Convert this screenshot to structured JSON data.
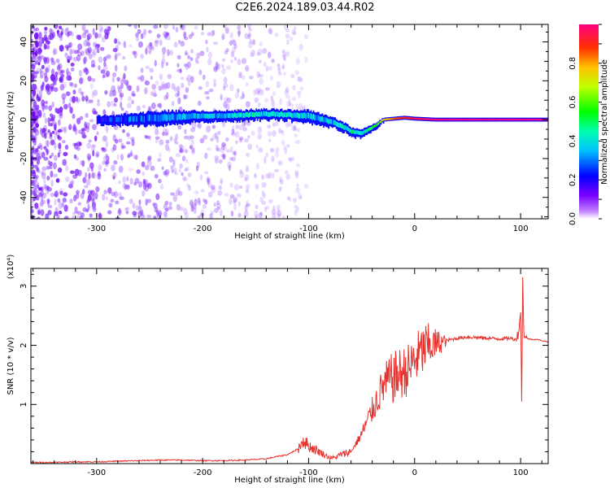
{
  "title": "C2E6.2024.189.03.44.R02",
  "colors": {
    "snr_line": "#e8302c",
    "spectrogram_band": "#2a00ff",
    "speckle": "#8a3cff"
  },
  "chart_data": [
    {
      "type": "heatmap",
      "xlabel": "Height of straight line (km)",
      "ylabel": "Frequency (Hz)",
      "xlim": [
        -362,
        126
      ],
      "ylim": [
        -51,
        49
      ],
      "xticks": [
        -300,
        -200,
        -100,
        0,
        100
      ],
      "yticks": [
        -40,
        -20,
        0,
        20,
        40
      ],
      "colorbar": {
        "label": "Normalized spectral amplitude",
        "range": [
          0.0,
          1.0
        ],
        "ticks": [
          0.0,
          0.2,
          0.4,
          0.6,
          0.8
        ],
        "colormap": "rainbow"
      },
      "ridge": {
        "x": [
          -300,
          -280,
          -260,
          -240,
          -220,
          -200,
          -180,
          -160,
          -140,
          -120,
          -100,
          -80,
          -70,
          -60,
          -50,
          -40,
          -35,
          -30,
          -20,
          -10,
          0,
          20,
          40,
          60,
          80,
          100,
          126
        ],
        "y": [
          0,
          0,
          0.5,
          1,
          1.5,
          2,
          2,
          2.5,
          3,
          2.5,
          2,
          -1,
          -3,
          -6,
          -7,
          -4,
          -2,
          0,
          0.5,
          1,
          0.5,
          0,
          0,
          0,
          0,
          0,
          0
        ],
        "width": [
          4,
          5,
          6,
          7,
          6,
          5,
          5,
          5,
          5,
          5,
          6,
          5,
          5,
          4,
          4,
          3,
          2.5,
          2,
          2,
          2,
          2,
          2,
          2,
          2,
          2,
          2,
          2
        ],
        "amplitude": [
          0.2,
          0.25,
          0.3,
          0.3,
          0.35,
          0.35,
          0.35,
          0.4,
          0.4,
          0.4,
          0.35,
          0.35,
          0.4,
          0.45,
          0.4,
          0.5,
          0.6,
          0.75,
          0.85,
          0.9,
          0.95,
          1,
          1,
          1,
          1,
          1,
          1
        ]
      }
    },
    {
      "type": "line",
      "xlabel": "Height of straight line (km)",
      "ylabel": "SNR (10 * v/v)",
      "y_multiplier": "(x10⁴)",
      "xlim": [
        -362,
        126
      ],
      "ylim": [
        0,
        3.3
      ],
      "xticks": [
        -300,
        -200,
        -100,
        0,
        100
      ],
      "yticks": [
        1,
        2,
        3
      ],
      "series": [
        {
          "x": [
            -362,
            -340,
            -320,
            -300,
            -280,
            -260,
            -240,
            -220,
            -200,
            -180,
            -160,
            -140,
            -130,
            -120,
            -110,
            -105,
            -100,
            -95,
            -90,
            -85,
            -80,
            -75,
            -70,
            -60,
            -55,
            -50,
            -45,
            -40,
            -35,
            -30,
            -25,
            -20,
            -15,
            -10,
            -5,
            0,
            5,
            10,
            15,
            20,
            25,
            30,
            35,
            40,
            50,
            60,
            70,
            80,
            90,
            95,
            98,
            100,
            101,
            102,
            103,
            105,
            110,
            115,
            120,
            126
          ],
          "y": [
            0.02,
            0.02,
            0.03,
            0.03,
            0.04,
            0.05,
            0.06,
            0.06,
            0.05,
            0.05,
            0.06,
            0.08,
            0.12,
            0.15,
            0.25,
            0.4,
            0.3,
            0.25,
            0.2,
            0.15,
            0.1,
            0.1,
            0.15,
            0.2,
            0.35,
            0.5,
            0.7,
            0.9,
            1.1,
            1.3,
            1.4,
            1.45,
            1.5,
            1.55,
            1.6,
            1.75,
            1.85,
            1.95,
            2.0,
            2.02,
            2.05,
            2.08,
            2.1,
            2.12,
            2.14,
            2.13,
            2.12,
            2.11,
            2.12,
            2.1,
            2.2,
            2.6,
            1.0,
            3.2,
            2.2,
            2.12,
            2.1,
            2.1,
            2.08,
            2.06
          ]
        }
      ]
    }
  ]
}
